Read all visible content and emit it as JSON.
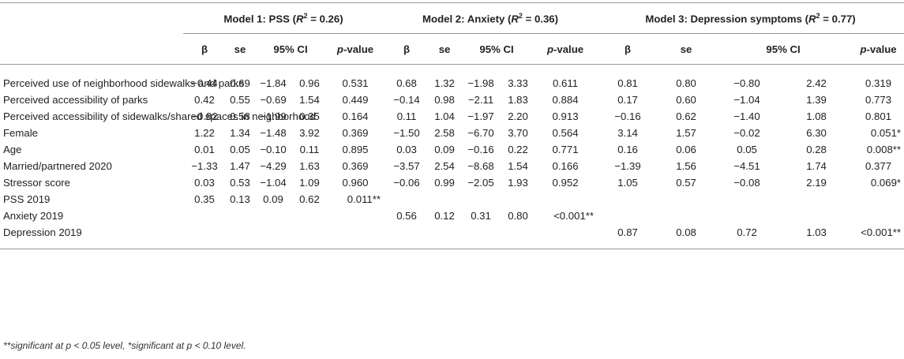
{
  "models": [
    {
      "label": "Model 1: PSS (",
      "r2": "0.26"
    },
    {
      "label": "Model 2: Anxiety (",
      "r2": "0.36"
    },
    {
      "label": "Model 3: Depression symptoms (",
      "r2": "0.77"
    }
  ],
  "r2_symbol": "R",
  "r2_sup": "2",
  "r2_eq": " = ",
  "r2_close": ")",
  "col_headers": {
    "beta": "β",
    "se": "se",
    "ci": "95% CI",
    "p_italic": "p",
    "p_rest": "-value"
  },
  "rows": [
    {
      "label": "Perceived use of neighborhood sidewalks and parks",
      "m1": [
        "−0.44",
        "0.69",
        "−1.84",
        "0.96",
        "0.531"
      ],
      "m2": [
        "0.68",
        "1.32",
        "−1.98",
        "3.33",
        "0.611"
      ],
      "m3": [
        "0.81",
        "0.80",
        "−0.80",
        "2.42",
        "0.319"
      ]
    },
    {
      "label": "Perceived accessibility of parks",
      "m1": [
        "0.42",
        "0.55",
        "−0.69",
        "1.54",
        "0.449"
      ],
      "m2": [
        "−0.14",
        "0.98",
        "−2.11",
        "1.83",
        "0.884"
      ],
      "m3": [
        "0.17",
        "0.60",
        "−1.04",
        "1.39",
        "0.773"
      ]
    },
    {
      "label": "Perceived accessibility of sidewalks/shared spaces in neighborhood",
      "m1": [
        "−0.82",
        "0.58",
        "−1.99",
        "0.35",
        "0.164"
      ],
      "m2": [
        "0.11",
        "1.04",
        "−1.97",
        "2.20",
        "0.913"
      ],
      "m3": [
        "−0.16",
        "0.62",
        "−1.40",
        "1.08",
        "0.801"
      ]
    },
    {
      "label": "Female",
      "m1": [
        "1.22",
        "1.34",
        "−1.48",
        "3.92",
        "0.369"
      ],
      "m2": [
        "−1.50",
        "2.58",
        "−6.70",
        "3.70",
        "0.564"
      ],
      "m3": [
        "3.14",
        "1.57",
        "−0.02",
        "6.30",
        "0.051*"
      ]
    },
    {
      "label": "Age",
      "m1": [
        "0.01",
        "0.05",
        "−0.10",
        "0.11",
        "0.895"
      ],
      "m2": [
        "0.03",
        "0.09",
        "−0.16",
        "0.22",
        "0.771"
      ],
      "m3": [
        "0.16",
        "0.06",
        "0.05",
        "0.28",
        "0.008**"
      ]
    },
    {
      "label": "Married/partnered 2020",
      "m1": [
        "−1.33",
        "1.47",
        "−4.29",
        "1.63",
        "0.369"
      ],
      "m2": [
        "−3.57",
        "2.54",
        "−8.68",
        "1.54",
        "0.166"
      ],
      "m3": [
        "−1.39",
        "1.56",
        "−4.51",
        "1.74",
        "0.377"
      ]
    },
    {
      "label": "Stressor score",
      "m1": [
        "0.03",
        "0.53",
        "−1.04",
        "1.09",
        "0.960"
      ],
      "m2": [
        "−0.06",
        "0.99",
        "−2.05",
        "1.93",
        "0.952"
      ],
      "m3": [
        "1.05",
        "0.57",
        "−0.08",
        "2.19",
        "0.069*"
      ]
    },
    {
      "label": "PSS 2019",
      "m1": [
        "0.35",
        "0.13",
        "0.09",
        "0.62",
        "0.011**"
      ],
      "m2": [
        "",
        "",
        "",
        "",
        ""
      ],
      "m3": [
        "",
        "",
        "",
        "",
        ""
      ]
    },
    {
      "label": "Anxiety 2019",
      "m1": [
        "",
        "",
        "",
        "",
        ""
      ],
      "m2": [
        "0.56",
        "0.12",
        "0.31",
        "0.80",
        "<0.001**"
      ],
      "m3": [
        "",
        "",
        "",
        "",
        ""
      ]
    },
    {
      "label": "Depression 2019",
      "m1": [
        "",
        "",
        "",
        "",
        ""
      ],
      "m2": [
        "",
        "",
        "",
        "",
        ""
      ],
      "m3": [
        "0.87",
        "0.08",
        "0.72",
        "1.03",
        "<0.001**"
      ]
    }
  ],
  "footnote": "**significant at p < 0.05 level, *significant at p < 0.10 level."
}
